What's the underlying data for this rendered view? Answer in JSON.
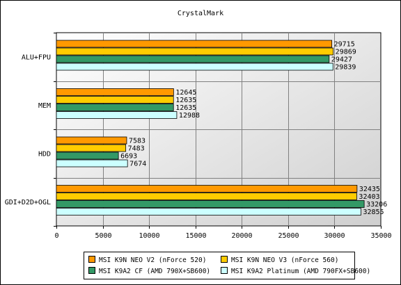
{
  "chart_data": {
    "type": "bar",
    "orientation": "horizontal",
    "title": "CrystalMark",
    "categories": [
      "ALU+FPU",
      "MEM",
      "HDD",
      "GDI+D2D+OGL"
    ],
    "series": [
      {
        "name": "MSI K9N NEO V2 (nForce 520)",
        "color": "#ff9900",
        "values": [
          29715,
          12645,
          7583,
          32435
        ]
      },
      {
        "name": "MSI K9N NEO V3 (nForce 560)",
        "color": "#ffcc00",
        "values": [
          29869,
          12635,
          7483,
          32403
        ]
      },
      {
        "name": "MSI K9A2 CF (AMD 790X+SB600)",
        "color": "#339966",
        "values": [
          29427,
          12635,
          6693,
          33206
        ]
      },
      {
        "name": "MSI K9A2 Platinum (AMD 790FX+SB600)",
        "color": "#ccffff",
        "values": [
          29839,
          12988,
          7674,
          32855
        ]
      }
    ],
    "xlim": [
      0,
      35000
    ],
    "xticks": [
      0,
      5000,
      10000,
      15000,
      20000,
      25000,
      30000,
      35000
    ],
    "grid": true,
    "legend_position": "bottom"
  }
}
